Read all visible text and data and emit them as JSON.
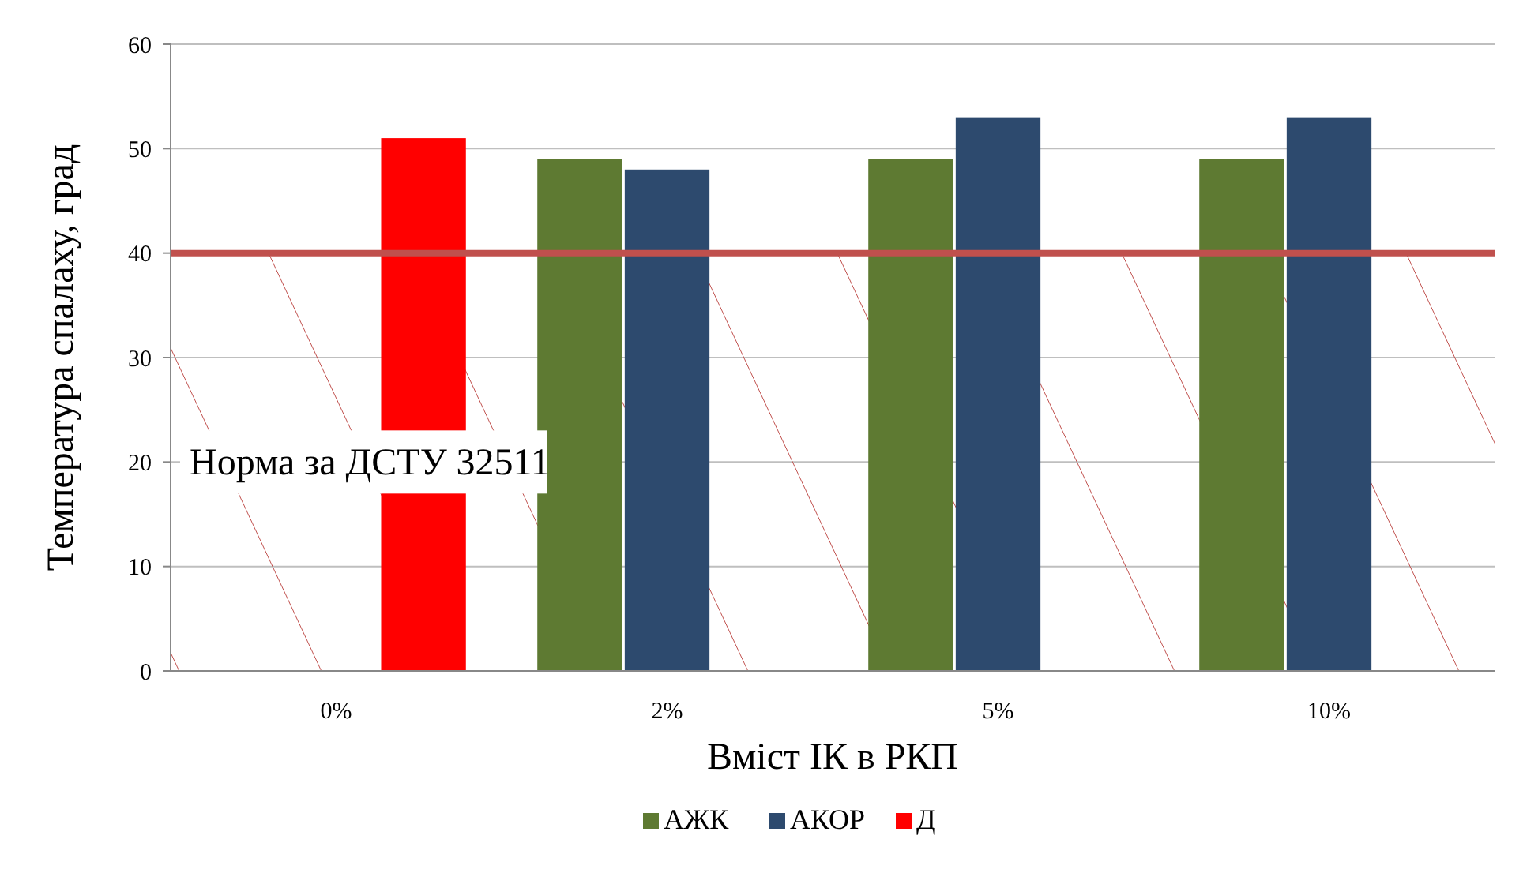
{
  "chart_data": {
    "type": "bar",
    "xlabel": "Вміст ІК в РКП",
    "ylabel": "Температура спалаху, град",
    "categories": [
      "0%",
      "2%",
      "5%",
      "10%"
    ],
    "series": [
      {
        "name": "АЖК",
        "color": "#5e7a32",
        "values": [
          null,
          49,
          49,
          49
        ]
      },
      {
        "name": "АКОР",
        "color": "#2d4a6e",
        "values": [
          null,
          48,
          53,
          53
        ]
      },
      {
        "name": "Д",
        "color": "#ff0000",
        "values": [
          51,
          null,
          null,
          null
        ]
      }
    ],
    "ylim": [
      0,
      60
    ],
    "yticks": [
      0,
      10,
      20,
      30,
      40,
      50,
      60
    ],
    "grid": "y",
    "legend": "bottom",
    "ref_lines": [
      {
        "axis": "y",
        "value": 40,
        "color": "#c0504d"
      }
    ],
    "bands": [
      {
        "axis": "y",
        "from": 0,
        "to": 40,
        "color": "#c0504d",
        "label": "Норма за ДСТУ 32511"
      }
    ]
  }
}
